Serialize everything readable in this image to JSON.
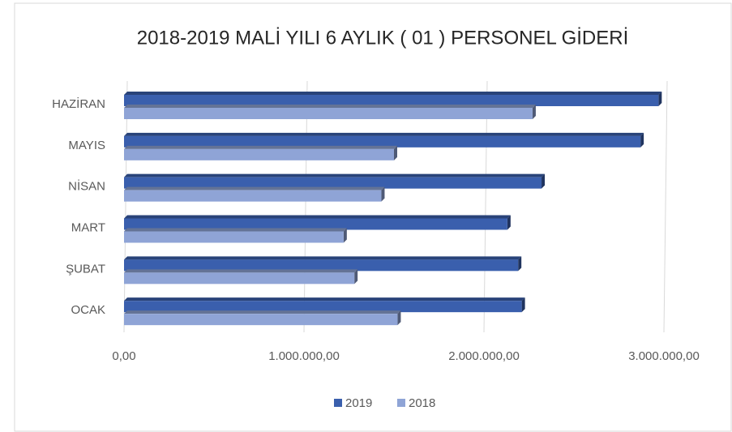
{
  "chart_data": {
    "type": "barh",
    "title": "2018-2019 MALİ YILI 6 AYLIK ( 01 ) PERSONEL GİDERİ",
    "categories": [
      "OCAK",
      "ŞUBAT",
      "MART",
      "NİSAN",
      "MAYIS",
      "HAZİRAN"
    ],
    "series": [
      {
        "name": "2019",
        "color": "#3a5fad",
        "values": [
          2210000,
          2190000,
          2130000,
          2320000,
          2870000,
          2970000
        ]
      },
      {
        "name": "2018",
        "color": "#8fa4d6",
        "values": [
          1520000,
          1280000,
          1220000,
          1430000,
          1500000,
          2270000
        ]
      }
    ],
    "xlim": [
      0,
      3000000
    ],
    "xticks": [
      {
        "value": 0,
        "label": "0,00"
      },
      {
        "value": 1000000,
        "label": "1.000.000,00"
      },
      {
        "value": 2000000,
        "label": "2.000.000,00"
      },
      {
        "value": 3000000,
        "label": "3.000.000,00"
      }
    ],
    "grid": true,
    "legend": "bottom"
  }
}
